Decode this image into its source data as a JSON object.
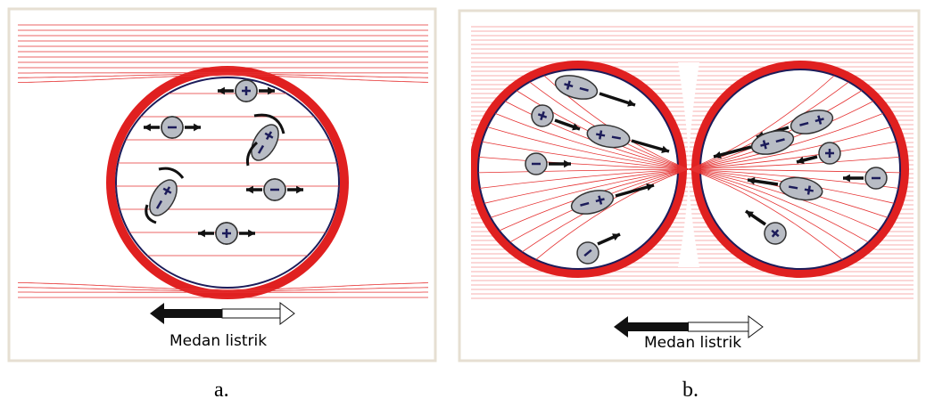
{
  "panels": [
    {
      "label": "a.",
      "field_label": "Medan listrik"
    },
    {
      "label": "b.",
      "field_label": "Medan listrik"
    }
  ]
}
